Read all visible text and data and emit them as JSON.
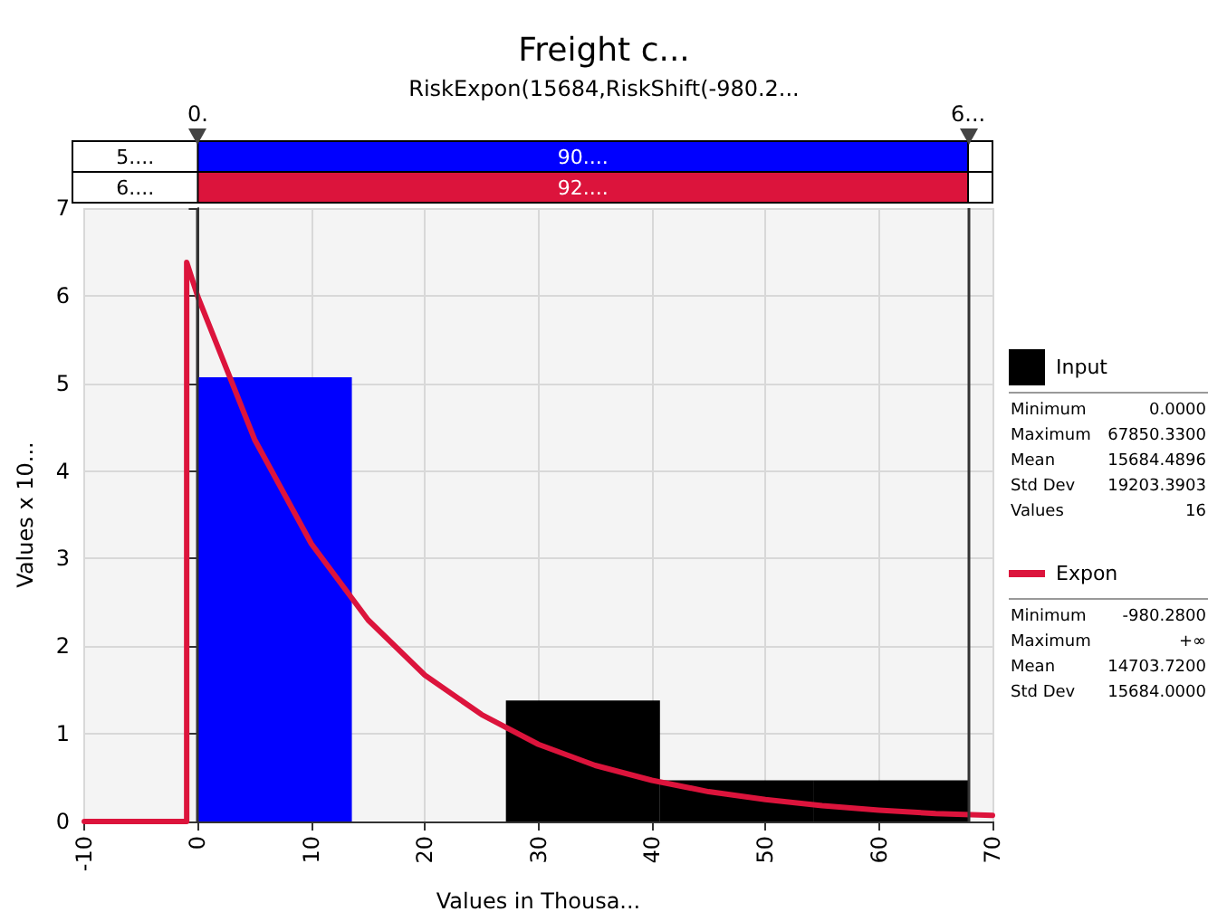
{
  "chart_data": {
    "type": "histogram",
    "title": "Freight c...",
    "subtitle": "RiskExpon(15684,RiskShift(-980.2...",
    "xlabel": "Values in Thousa...",
    "ylabel": "Values x 10...",
    "xlim": [
      -10,
      70
    ],
    "xticks": [
      -10,
      0,
      10,
      20,
      30,
      40,
      50,
      60,
      70
    ],
    "ylim": [
      0,
      7
    ],
    "yticks": [
      0,
      1,
      2,
      3,
      4,
      5,
      6,
      7
    ],
    "grid": true,
    "legend": "right",
    "series": [
      {
        "name": "Input",
        "color": "#000000",
        "bins": [
          0,
          13.57,
          27.14,
          40.71,
          54.28,
          67.85
        ],
        "values": [
          5.07,
          0,
          1.38,
          0.47,
          0.47
        ],
        "colors": [
          "#0000ff",
          "#000000",
          "#000000",
          "#000000",
          "#000000"
        ]
      },
      {
        "name": "Expon",
        "type": "line",
        "color": "#dc143c",
        "x": [
          -10,
          -0.98,
          -0.98,
          0,
          5,
          10,
          15,
          20,
          25,
          30,
          35,
          40,
          45,
          50,
          55,
          60,
          65,
          70
        ],
        "values": [
          0,
          0,
          6.38,
          5.99,
          4.36,
          3.17,
          2.3,
          1.67,
          1.22,
          0.88,
          0.64,
          0.47,
          0.34,
          0.25,
          0.18,
          0.13,
          0.09,
          0.07
        ]
      }
    ],
    "ref_lines": [
      {
        "axis": "x",
        "value": 0,
        "color": "#333333"
      },
      {
        "axis": "x",
        "value": 67.85,
        "color": "#333333"
      }
    ],
    "annotations": [
      "0.",
      "6...",
      "5....",
      "90....",
      "6....",
      "92....",
      "Minimum",
      "0.0000",
      "Maximum",
      "67850.3300",
      "Mean",
      "15684.4896",
      "Std Dev",
      "19203.3903",
      "Values",
      "16",
      "Minimum",
      "-980.2800",
      "Maximum",
      "+∞",
      "Mean",
      "14703.7200",
      "Std Dev",
      "15684.0000"
    ]
  }
}
